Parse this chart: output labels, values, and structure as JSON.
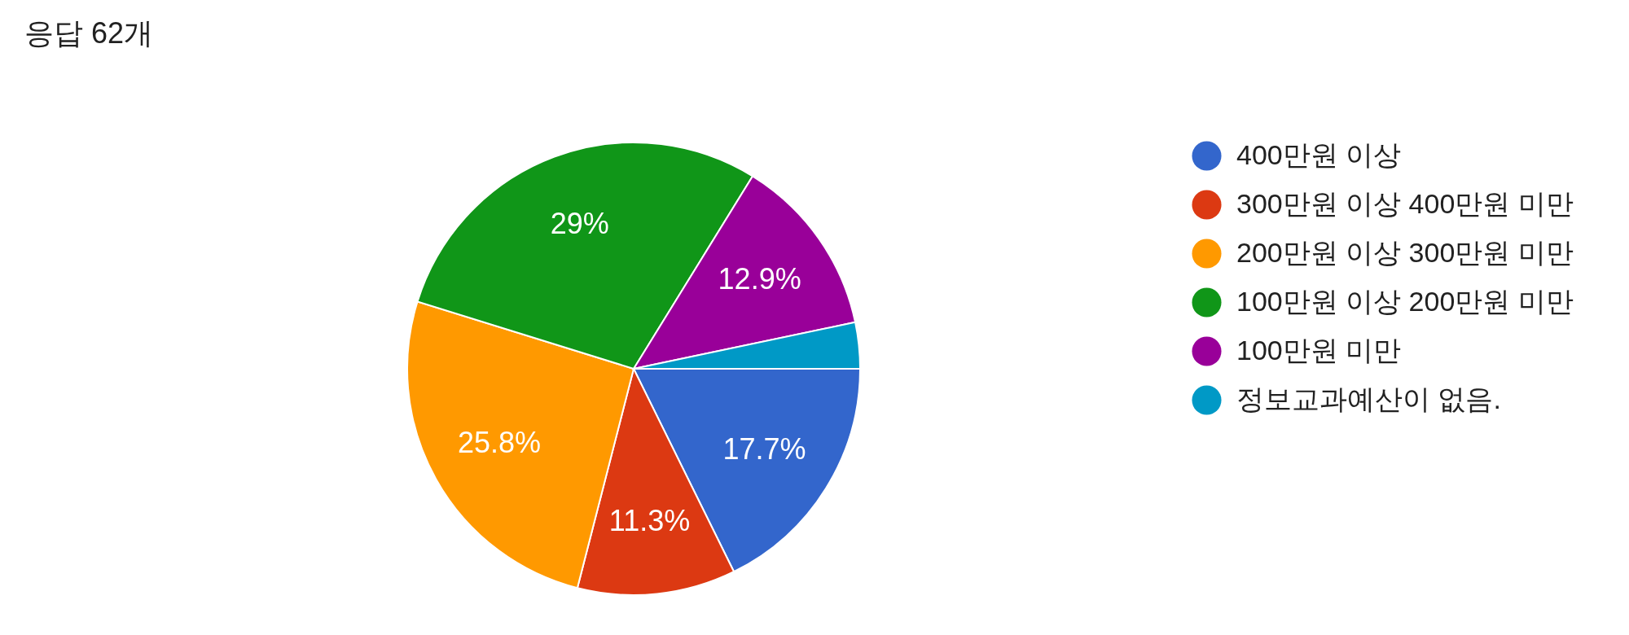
{
  "chart_data": {
    "type": "pie",
    "title": "응답 62개",
    "categories": [
      "400만원 이상",
      "300만원 이상 400만원 미만",
      "200만원 이상 300만원 미만",
      "100만원 이상 200만원 미만",
      "100만원 미만",
      "정보교과예산이 없음."
    ],
    "values": [
      17.7,
      11.3,
      25.8,
      29,
      12.9,
      3.3
    ],
    "colors": [
      "#3366cc",
      "#dc3912",
      "#ff9900",
      "#109618",
      "#990099",
      "#0099c6"
    ],
    "value_labels": [
      "17.7%",
      "11.3%",
      "25.8%",
      "29%",
      "12.9%",
      null
    ],
    "legend": "right"
  }
}
